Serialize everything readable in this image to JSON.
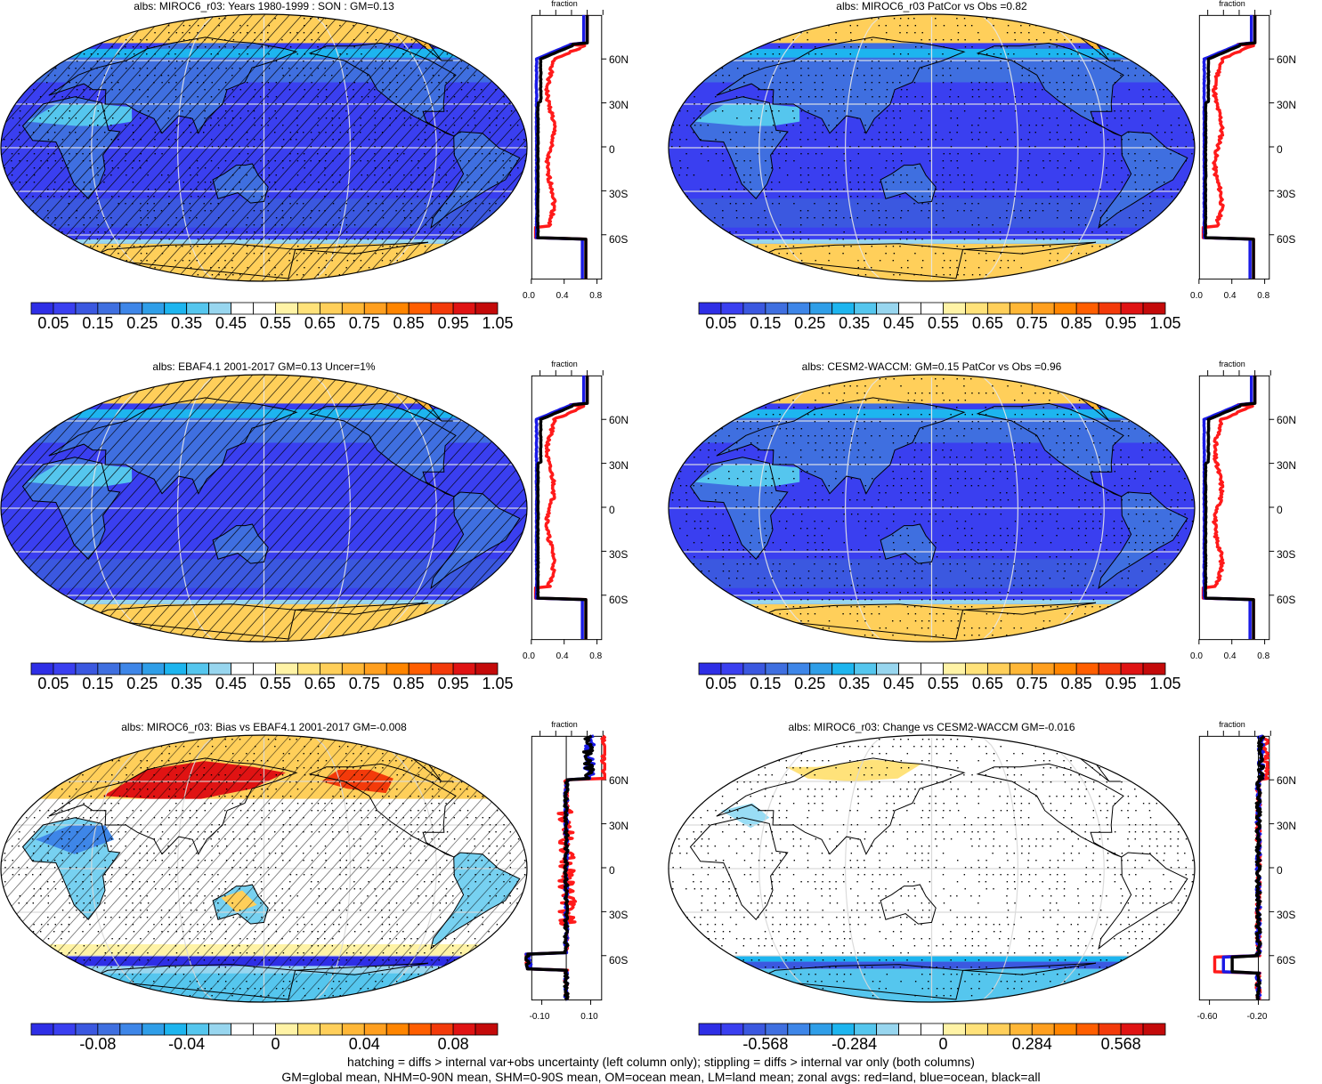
{
  "colors": {
    "seq": [
      "#2e2ee6",
      "#3a3ff0",
      "#3b58e0",
      "#3f6fe0",
      "#3e86e8",
      "#2f9ee8",
      "#1db5ef",
      "#55c6ee",
      "#98d6ef",
      "#ffffff",
      "#ffffff",
      "#fff3a6",
      "#ffe27a",
      "#ffcf5a",
      "#ffb737",
      "#ff9f1f",
      "#ff8500",
      "#ff5e00",
      "#f33a0a",
      "#e01313",
      "#c40a0a"
    ],
    "div": [
      "#2e2ee6",
      "#3a3ff0",
      "#3b58e0",
      "#3f6fe0",
      "#3e86e8",
      "#2f9ee8",
      "#1db5ef",
      "#55c6ee",
      "#98d6ef",
      "#ffffff",
      "#ffffff",
      "#fff3a6",
      "#ffe27a",
      "#ffcf5a",
      "#ffb737",
      "#ff9f1f",
      "#ff8500",
      "#ff5e00",
      "#f33a0a",
      "#e01313",
      "#c40a0a"
    ],
    "land_line": "#ff1a1a",
    "ocean_line": "#1a1ae6",
    "all_line": "#000000"
  },
  "lat_labels": [
    "60N",
    "30N",
    "0",
    "30S",
    "60S"
  ],
  "zonal_axis_title": "fraction",
  "panels": [
    {
      "title": "albs: MIROC6_r03: Years 1980-1999 : SON : GM=0.13",
      "hatch": true,
      "stipple": true,
      "mode": "abs",
      "variant": 0,
      "colorbar_labels": [
        "0.05",
        "0.15",
        "0.25",
        "0.35",
        "0.45",
        "0.55",
        "0.65",
        "0.75",
        "0.85",
        "0.95",
        "1.05"
      ],
      "zonal_ticks": [
        "0.0",
        "0.4",
        "0.8"
      ]
    },
    {
      "title": "albs: MIROC6_r03 PatCor vs Obs =0.82",
      "hatch": false,
      "stipple": true,
      "mode": "abs",
      "variant": 1,
      "colorbar_labels": [
        "0.05",
        "0.15",
        "0.25",
        "0.35",
        "0.45",
        "0.55",
        "0.65",
        "0.75",
        "0.85",
        "0.95",
        "1.05"
      ],
      "zonal_ticks": [
        "0.0",
        "0.4",
        "0.8"
      ]
    },
    {
      "title": "albs: EBAF4.1 2001-2017 GM=0.13 Uncer=1%",
      "hatch": true,
      "stipple": false,
      "mode": "abs",
      "variant": 2,
      "colorbar_labels": [
        "0.05",
        "0.15",
        "0.25",
        "0.35",
        "0.45",
        "0.55",
        "0.65",
        "0.75",
        "0.85",
        "0.95",
        "1.05"
      ],
      "zonal_ticks": [
        "0.0",
        "0.4",
        "0.8"
      ]
    },
    {
      "title": "albs: CESM2-WACCM: GM=0.15 PatCor vs Obs =0.96",
      "hatch": false,
      "stipple": true,
      "mode": "abs",
      "variant": 3,
      "colorbar_labels": [
        "0.05",
        "0.15",
        "0.25",
        "0.35",
        "0.45",
        "0.55",
        "0.65",
        "0.75",
        "0.85",
        "0.95",
        "1.05"
      ],
      "zonal_ticks": [
        "0.0",
        "0.4",
        "0.8"
      ]
    },
    {
      "title": "albs: MIROC6_r03: Bias vs EBAF4.1 2001-2017  GM=-0.008",
      "hatch": true,
      "stipple": true,
      "mode": "bias",
      "variant": 4,
      "colorbar_labels": [
        "-0.08",
        "-0.04",
        "0",
        "0.04",
        "0.08"
      ],
      "zonal_ticks": [
        "-0.10",
        "0.10"
      ]
    },
    {
      "title": "albs: MIROC6_r03: Change vs CESM2-WACCM GM=-0.016",
      "hatch": false,
      "stipple": true,
      "mode": "change",
      "variant": 5,
      "colorbar_labels": [
        "-0.568",
        "-0.284",
        "0",
        "0.284",
        "0.568"
      ],
      "zonal_ticks": [
        "-0.60",
        "-0.20"
      ]
    }
  ],
  "footer": {
    "line1": "hatching = diffs > internal var+obs uncertainty (left column only); stippling = diffs > internal var only (both columns)",
    "line2": "GM=global mean, NHM=0-90N mean, SHM=0-90S mean, OM=ocean mean, LM=land mean; zonal avgs: red=land, blue=ocean, black=all"
  }
}
